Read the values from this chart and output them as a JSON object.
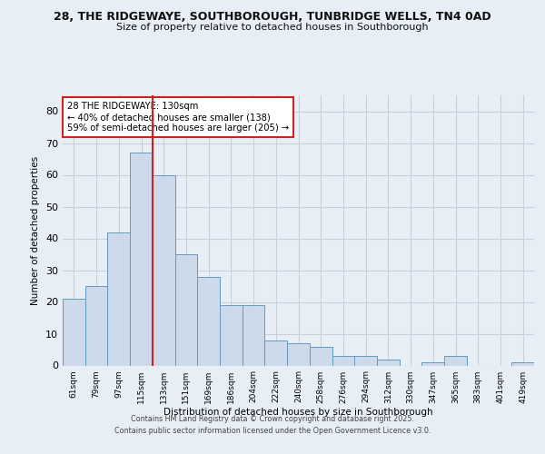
{
  "title_line1": "28, THE RIDGEWAYE, SOUTHBOROUGH, TUNBRIDGE WELLS, TN4 0AD",
  "title_line2": "Size of property relative to detached houses in Southborough",
  "xlabel": "Distribution of detached houses by size in Southborough",
  "ylabel": "Number of detached properties",
  "categories": [
    "61sqm",
    "79sqm",
    "97sqm",
    "115sqm",
    "133sqm",
    "151sqm",
    "169sqm",
    "186sqm",
    "204sqm",
    "222sqm",
    "240sqm",
    "258sqm",
    "276sqm",
    "294sqm",
    "312sqm",
    "330sqm",
    "347sqm",
    "365sqm",
    "383sqm",
    "401sqm",
    "419sqm"
  ],
  "values": [
    21,
    25,
    42,
    67,
    60,
    35,
    28,
    19,
    19,
    8,
    7,
    6,
    3,
    3,
    2,
    0,
    1,
    3,
    0,
    0,
    1
  ],
  "bar_color": "#ccdaeb",
  "bar_edge_color": "#6699bb",
  "grid_color": "#c8d0dc",
  "annotation_text": "28 THE RIDGEWAYE: 130sqm\n← 40% of detached houses are smaller (138)\n59% of semi-detached houses are larger (205) →",
  "annotation_box_color": "#ffffff",
  "annotation_box_edge": "#cc2222",
  "vline_color": "#cc2222",
  "vline_x": 3.5,
  "ylim": [
    0,
    85
  ],
  "yticks": [
    0,
    10,
    20,
    30,
    40,
    50,
    60,
    70,
    80
  ],
  "footer_line1": "Contains HM Land Registry data © Crown copyright and database right 2025.",
  "footer_line2": "Contains public sector information licensed under the Open Government Licence v3.0.",
  "background_color": "#e8eef5",
  "plot_bg_color": "#e8eef5"
}
